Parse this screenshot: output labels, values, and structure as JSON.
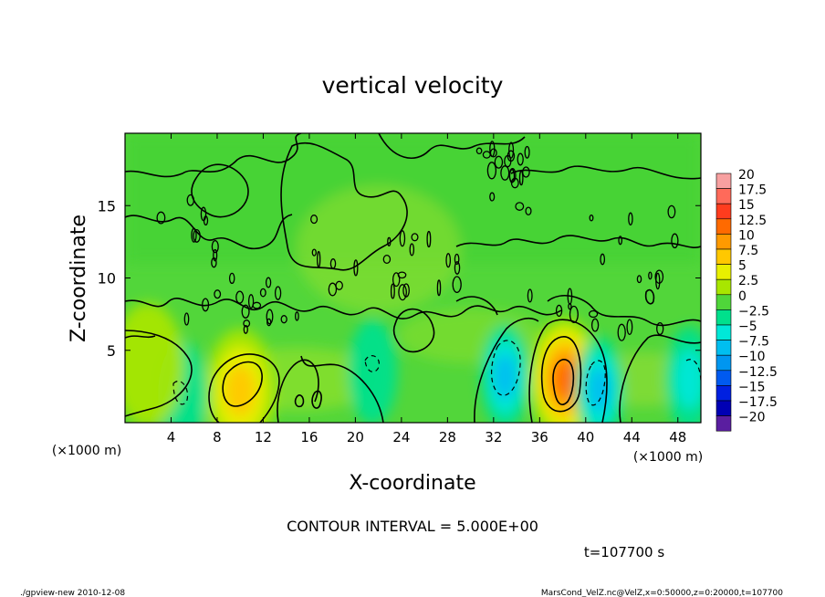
{
  "chart_data": {
    "type": "heatmap",
    "title": "vertical velocity",
    "xlabel": "X-coordinate",
    "ylabel": "Z-coordinate",
    "x_unit_left": "(×1000 m)",
    "x_unit_right": "(×1000 m)",
    "xlim": [
      0,
      50
    ],
    "ylim": [
      0,
      20
    ],
    "x_ticks": [
      4,
      8,
      12,
      16,
      20,
      24,
      28,
      32,
      36,
      40,
      44,
      48
    ],
    "y_ticks": [
      5,
      10,
      15
    ],
    "colorbar": {
      "levels": [
        "20",
        "17.5",
        "15",
        "12.5",
        "10",
        "7.5",
        "5",
        "2.5",
        "0",
        "−2.5",
        "−5",
        "−7.5",
        "−10",
        "−12.5",
        "−15",
        "−17.5",
        "−20"
      ],
      "colors": [
        "#f7a0a0",
        "#ff6a5a",
        "#ff3c1e",
        "#ff6a00",
        "#ff9a00",
        "#ffc800",
        "#e8f000",
        "#a8e600",
        "#4fd63a",
        "#00e08c",
        "#00e8d8",
        "#00bef0",
        "#0096f0",
        "#005af0",
        "#0020e0",
        "#0000b4",
        "#5a1ea0"
      ]
    },
    "features": [
      {
        "kind": "updraft",
        "x": 38.2,
        "z": 3.0,
        "peak": 12.5
      },
      {
        "kind": "updraft",
        "x": 10.0,
        "z": 2.2,
        "peak": 7.5
      },
      {
        "kind": "downdraft",
        "x": 33.0,
        "z": 3.2,
        "peak": -7.5
      },
      {
        "kind": "downdraft",
        "x": 41.2,
        "z": 2.3,
        "peak": -7.5
      },
      {
        "kind": "downdraft",
        "x": 5.0,
        "z": 2.0,
        "peak": -2.5
      },
      {
        "kind": "downdraft",
        "x": 21.5,
        "z": 3.5,
        "peak": -2.5
      },
      {
        "kind": "downdraft",
        "x": 49.0,
        "z": 3.0,
        "peak": -5
      },
      {
        "kind": "updraft",
        "x": 2.0,
        "z": 4.0,
        "peak": 2.5
      }
    ],
    "contour_interval_text": "CONTOUR INTERVAL = 5.000E+00",
    "time_text": "t=107700 s"
  },
  "footer": {
    "left": "./gpview-new  2010-12-08",
    "right": "MarsCond_VelZ.nc@VelZ,x=0:50000,z=0:20000,t=107700"
  }
}
